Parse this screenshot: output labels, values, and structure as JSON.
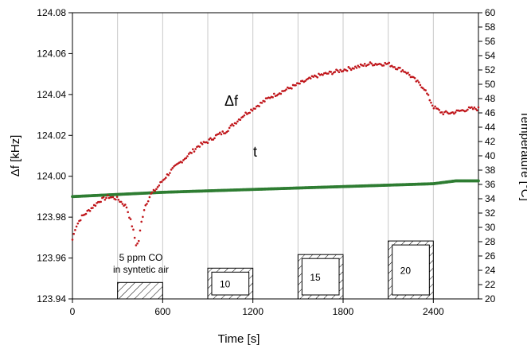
{
  "chart_data": {
    "type": "scatter",
    "xlabel": "Time [s]",
    "ylabel_left": "Δf [kHz]",
    "ylabel_right": "Temperature [°C]",
    "xlim": [
      0,
      2700
    ],
    "ylim_left": [
      123.94,
      124.08
    ],
    "ylim_right": [
      20,
      60
    ],
    "x_ticks": [
      0,
      600,
      1200,
      1800,
      2400
    ],
    "x_tick_labels": [
      "0",
      "600",
      "1200",
      "1800",
      "2400"
    ],
    "y_left_ticks": [
      123.94,
      123.96,
      123.98,
      124.0,
      124.02,
      124.04,
      124.06,
      124.08
    ],
    "y_left_tick_labels": [
      "123.94",
      "123.96",
      "123.98",
      "124.00",
      "124.02",
      "124.04",
      "124.06",
      "124.08"
    ],
    "y_right_ticks": [
      20,
      22,
      24,
      26,
      28,
      30,
      32,
      34,
      36,
      38,
      40,
      42,
      44,
      46,
      48,
      50,
      52,
      54,
      56,
      58,
      60
    ],
    "y_right_tick_labels": [
      "20",
      "22",
      "24",
      "26",
      "28",
      "30",
      "32",
      "34",
      "36",
      "38",
      "40",
      "42",
      "44",
      "46",
      "48",
      "50",
      "52",
      "54",
      "56",
      "58",
      "60"
    ],
    "vertical_gridlines_at": [
      300,
      600,
      900,
      1200,
      1500,
      1800,
      2100,
      2400
    ],
    "series": [
      {
        "name": "Δf",
        "axis": "left",
        "color": "#c0161b",
        "x": [
          0,
          20,
          60,
          120,
          180,
          240,
          300,
          360,
          400,
          425,
          440,
          460,
          480,
          520,
          560,
          600,
          660,
          720,
          780,
          840,
          900,
          960,
          1020,
          1080,
          1140,
          1200,
          1260,
          1320,
          1380,
          1440,
          1500,
          1560,
          1620,
          1680,
          1740,
          1800,
          1860,
          1920,
          1980,
          2040,
          2100,
          2160,
          2220,
          2280,
          2340,
          2400,
          2460,
          2520,
          2580,
          2640,
          2700
        ],
        "y": [
          123.969,
          123.975,
          123.98,
          123.984,
          123.988,
          123.99,
          123.989,
          123.985,
          123.975,
          123.966,
          123.968,
          123.978,
          123.985,
          123.991,
          123.994,
          123.998,
          124.003,
          124.007,
          124.011,
          124.015,
          124.017,
          124.02,
          124.022,
          124.026,
          124.03,
          124.033,
          124.036,
          124.039,
          124.041,
          124.043,
          124.045,
          124.047,
          124.049,
          124.05,
          124.051,
          124.052,
          124.053,
          124.054,
          124.055,
          124.055,
          124.055,
          124.053,
          124.051,
          124.047,
          124.043,
          124.034,
          124.031,
          124.031,
          124.032,
          124.033,
          124.033
        ]
      },
      {
        "name": "t",
        "axis": "right",
        "color": "#2e7d32",
        "x": [
          0,
          300,
          600,
          900,
          1200,
          1500,
          1800,
          2100,
          2400,
          2550,
          2700
        ],
        "y": [
          34.3,
          34.6,
          34.9,
          35.1,
          35.3,
          35.5,
          35.7,
          35.9,
          36.1,
          36.5,
          36.5
        ]
      }
    ],
    "co_pulses": [
      {
        "label": "5 ppm CO\nin syntetic air",
        "start": 300,
        "end": 600,
        "temp_level": 22.3
      },
      {
        "label": "10",
        "start": 900,
        "end": 1200,
        "temp_level": 24.3
      },
      {
        "label": "15",
        "start": 1500,
        "end": 1800,
        "temp_level": 26.2
      },
      {
        "label": "20",
        "start": 2100,
        "end": 2400,
        "temp_level": 28.1
      }
    ],
    "annotations": {
      "delta_f_label": "Δf",
      "temp_label": "t",
      "pulse_first_line1": "5 ppm CO",
      "pulse_first_line2": "in syntetic air",
      "pulse_10": "10",
      "pulse_15": "15",
      "pulse_20": "20"
    },
    "grid": "vertical gridlines"
  }
}
